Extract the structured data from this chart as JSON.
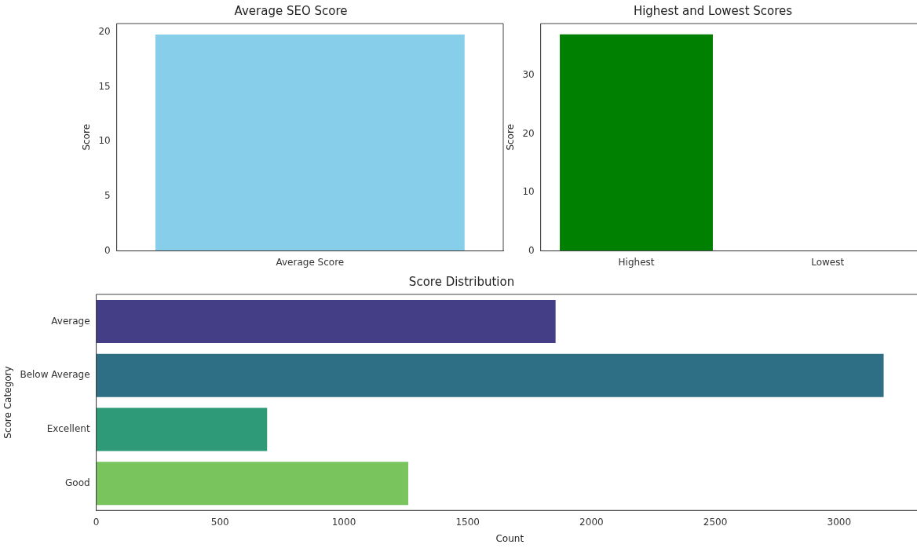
{
  "chart_data": [
    {
      "type": "bar",
      "title": "Average SEO Score",
      "ylabel": "Score",
      "categories": [
        "Average Score"
      ],
      "values": [
        19.8
      ],
      "color": "#87ceeb",
      "ylim": [
        0,
        20.8
      ],
      "yticks": [
        0,
        5,
        10,
        15,
        20
      ],
      "legend": false
    },
    {
      "type": "bar",
      "title": "Highest and Lowest Scores",
      "ylabel": "Score",
      "categories": [
        "Highest",
        "Lowest"
      ],
      "values": [
        37,
        0
      ],
      "color": "#008000",
      "ylim": [
        0,
        38.85
      ],
      "yticks": [
        0,
        10,
        20,
        30
      ],
      "legend": false
    },
    {
      "type": "bar",
      "orientation": "horizontal",
      "title": "Score Distribution",
      "xlabel": "Count",
      "ylabel": "Score Category",
      "categories": [
        "Average",
        "Below Average",
        "Excellent",
        "Good"
      ],
      "values": [
        1855,
        3180,
        690,
        1260
      ],
      "colors": [
        "#433e85",
        "#2f6f85",
        "#2e9a78",
        "#7ac45e"
      ],
      "xlim": [
        0,
        3340
      ],
      "xticks": [
        0,
        500,
        1000,
        1500,
        2000,
        2500,
        3000
      ],
      "legend": false
    }
  ]
}
